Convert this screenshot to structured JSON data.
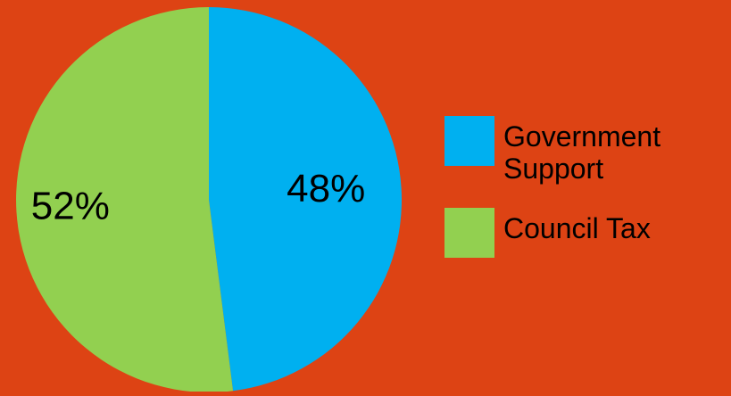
{
  "chart_data": {
    "type": "pie",
    "title": "",
    "slices": [
      {
        "name": "Government\nSupport",
        "value": 48,
        "label": "48%",
        "color": "#00B0F0"
      },
      {
        "name": "Council Tax",
        "value": 52,
        "label": "52%",
        "color": "#92D050"
      }
    ],
    "start_angle_deg": 0,
    "direction": "clockwise",
    "legend_position": "right"
  },
  "colors": {
    "background": "#DD4314"
  }
}
